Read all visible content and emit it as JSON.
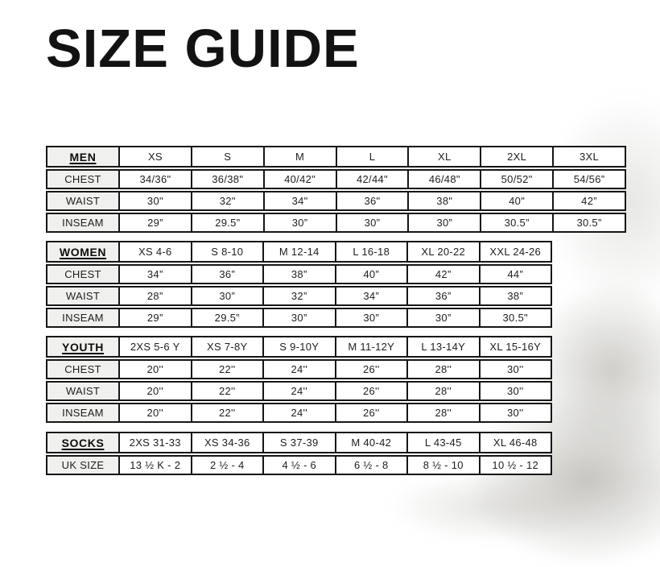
{
  "page": {
    "title": "SIZE GUIDE"
  },
  "tables": [
    {
      "id": "men",
      "category": "MEN",
      "columns": [
        "XS",
        "S",
        "M",
        "L",
        "XL",
        "2XL",
        "3XL"
      ],
      "rows": [
        {
          "label": "CHEST",
          "values": [
            "34/36\"",
            "36/38\"",
            "40/42\"",
            "42/44\"",
            "46/48\"",
            "50/52\"",
            "54/56”"
          ]
        },
        {
          "label": "WAIST",
          "values": [
            "30\"",
            "32\"",
            "34\"",
            "36\"",
            "38\"",
            "40\"",
            "42”"
          ]
        },
        {
          "label": "INSEAM",
          "values": [
            "29”",
            "29.5”",
            "30”",
            "30”",
            "30”",
            "30.5”",
            "30.5”"
          ]
        }
      ]
    },
    {
      "id": "women",
      "category": "WOMEN",
      "columns": [
        "XS 4-6",
        "S 8-10",
        "M 12-14",
        "L 16-18",
        "XL 20-22",
        "XXL 24-26"
      ],
      "rows": [
        {
          "label": "CHEST",
          "values": [
            "34”",
            "36”",
            "38”",
            "40”",
            "42”",
            "44”"
          ]
        },
        {
          "label": "WAIST",
          "values": [
            "28”",
            "30”",
            "32”",
            "34”",
            "36”",
            "38”"
          ]
        },
        {
          "label": "INSEAM",
          "values": [
            "29”",
            "29.5”",
            "30”",
            "30”",
            "30”",
            "30.5\""
          ]
        }
      ]
    },
    {
      "id": "youth",
      "category": "YOUTH",
      "columns": [
        "2XS 5-6 Y",
        "XS 7-8Y",
        "S 9-10Y",
        "M 11-12Y",
        "L 13-14Y",
        "XL 15-16Y"
      ],
      "rows": [
        {
          "label": "CHEST",
          "values": [
            "20''",
            "22''",
            "24''",
            "26''",
            "28''",
            "30''"
          ]
        },
        {
          "label": "WAIST",
          "values": [
            "20''",
            "22''",
            "24''",
            "26''",
            "28''",
            "30''"
          ]
        },
        {
          "label": "INSEAM",
          "values": [
            "20''",
            "22''",
            "24''",
            "26''",
            "28''",
            "30''"
          ]
        }
      ]
    },
    {
      "id": "socks",
      "category": "SOCKS",
      "columns": [
        "2XS 31-33",
        "XS 34-36",
        "S 37-39",
        "M 40-42",
        "L 43-45",
        "XL 46-48"
      ],
      "rows": [
        {
          "label": "UK SIZE",
          "values": [
            "13 ½ K - 2",
            "2 ½ - 4",
            "4 ½ - 6",
            "6 ½ - 8",
            "8 ½ - 10",
            "10 ½ - 12"
          ]
        }
      ]
    }
  ]
}
